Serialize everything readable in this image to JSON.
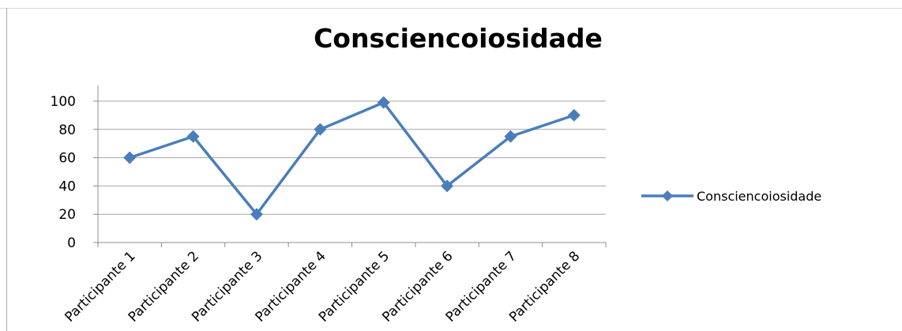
{
  "chart_data": {
    "type": "line",
    "title": "Consciencoiosidade",
    "categories": [
      "Participante 1",
      "Participante 2",
      "Participante 3",
      "Participante 4",
      "Participante 5",
      "Participante 6",
      "Participante 7",
      "Participante 8"
    ],
    "series": [
      {
        "name": "Consciencoiosidade",
        "values": [
          60,
          75,
          20,
          80,
          99,
          40,
          75,
          90
        ],
        "color": "#4a7ebb"
      }
    ],
    "ylim": [
      0,
      100
    ],
    "yticks": [
      0,
      20,
      40,
      60,
      80,
      100
    ],
    "grid": true,
    "legend": "right",
    "gridline_color": "#a6a6a6",
    "axis_color": "#8c8c8c"
  }
}
